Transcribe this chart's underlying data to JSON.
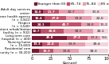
{
  "categories": [
    "Adult day services\ncenter",
    "Home health agency\n(n = 3,941)",
    "Hospice\n(n = 3,540)",
    "Inpatient rehabilitation\nfacility (n = 932)",
    "Long-term care\nhospital (n = 400)",
    "Nursing home\n(n = 15,600)",
    "Residential care\ncommunity (n = 30,200)"
  ],
  "age_groups": [
    "Younger than 65",
    "65–74",
    "75–84",
    "85 and older"
  ],
  "colors": [
    "#7b1a36",
    "#c0536a",
    "#e8a0b0",
    "#f2d5dc"
  ],
  "data": [
    [
      14.0,
      21.7,
      32.7,
      31.6
    ],
    [
      16.4,
      27.8,
      33.8,
      22.0
    ],
    [
      24.1,
      40.7,
      24.0,
      11.2
    ],
    [
      10.7,
      30.8,
      38.5,
      20.1
    ],
    [
      45.8,
      27.3,
      17.3,
      9.6
    ],
    [
      13.3,
      22.4,
      33.9,
      30.4
    ],
    [
      8.8,
      19.3,
      33.8,
      38.3
    ]
  ],
  "xlabel": "Percent",
  "xlim": [
    0,
    100
  ],
  "xticks": [
    0,
    25,
    50,
    75,
    100
  ],
  "bar_height": 0.62,
  "label_fontsize": 2.8,
  "ylabel_fontsize": 2.9,
  "xlabel_fontsize": 3.5,
  "legend_fontsize": 3.2
}
